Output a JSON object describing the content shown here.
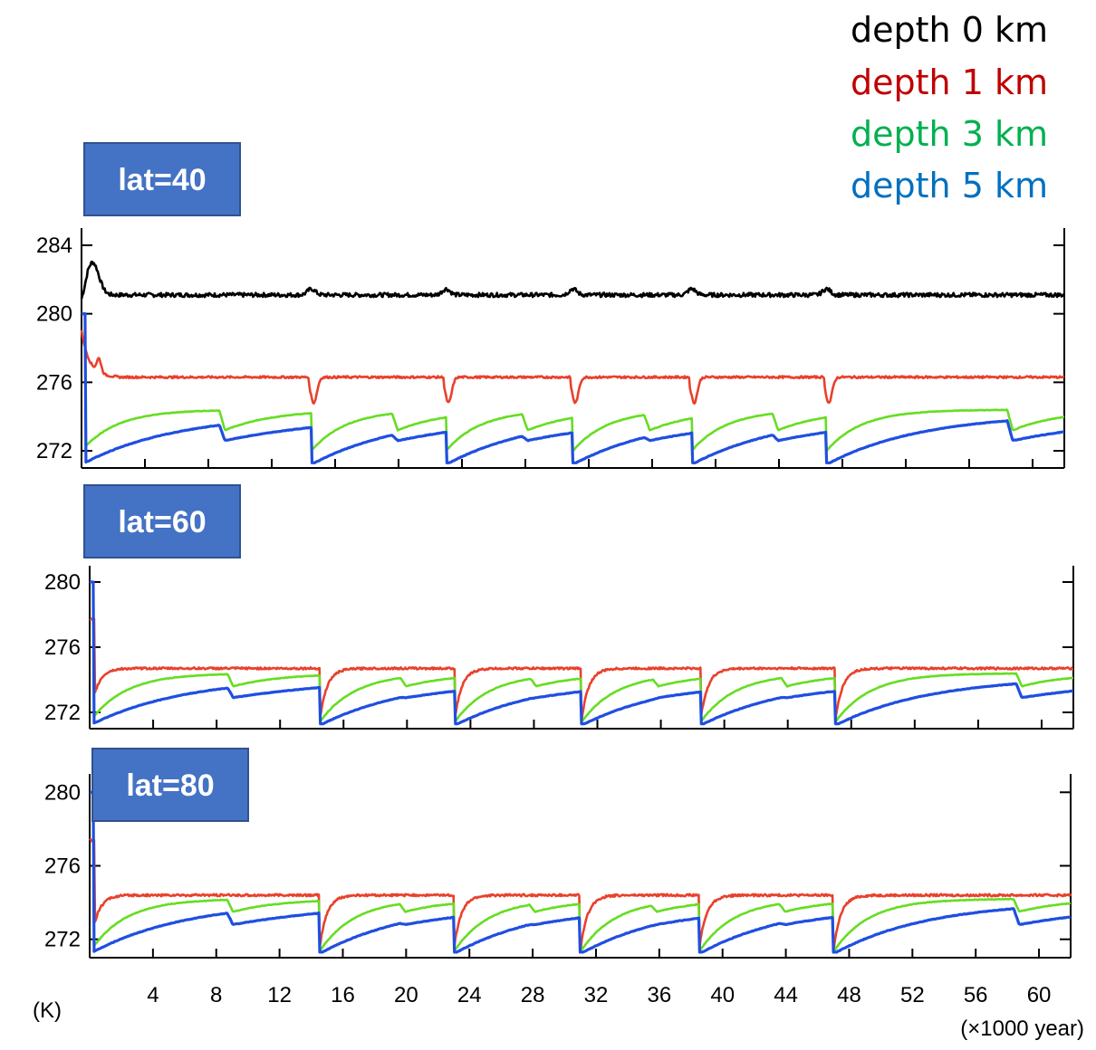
{
  "legend": [
    {
      "label": "depth 0 km",
      "color": "#000000"
    },
    {
      "label": "depth 1 km",
      "color": "#c00000"
    },
    {
      "label": "depth 3 km",
      "color": "#00b050"
    },
    {
      "label": "depth 5 km",
      "color": "#0070c0"
    }
  ],
  "series_colors": {
    "depth 0 km": "#000000",
    "depth 1 km": "#e8412c",
    "depth 3 km": "#66dd22",
    "depth 5 km": "#1f4fe0"
  },
  "x_axis": {
    "unit_label": "(×1000 year)",
    "ticks": [
      4,
      8,
      12,
      16,
      20,
      24,
      28,
      32,
      36,
      40,
      44,
      48,
      52,
      56,
      60
    ],
    "range": [
      0,
      62
    ]
  },
  "y_axis": {
    "unit_label": "(K)"
  },
  "chart_data": [
    {
      "type": "line",
      "panel_label": "lat=40",
      "xlim": [
        0,
        62
      ],
      "ylim": [
        271,
        285
      ],
      "yticks": [
        272,
        276,
        280,
        284
      ],
      "reset_times": [
        0,
        14.5,
        23,
        31,
        38.5,
        47
      ],
      "series": [
        {
          "name": "depth 0 km",
          "level": 281.1,
          "start": 280.5,
          "spike_peak": 283.0
        },
        {
          "name": "depth 1 km",
          "level": 276.3,
          "start": 279.0,
          "dip_min": 274.8
        },
        {
          "name": "depth 3 km",
          "low": 272.0,
          "high": 274.4,
          "drop_to": 273.2
        },
        {
          "name": "depth 5 km",
          "low": 271.2,
          "high": 274.2,
          "drop_to": 272.6
        }
      ]
    },
    {
      "type": "line",
      "panel_label": "lat=60",
      "xlim": [
        0,
        62
      ],
      "ylim": [
        271,
        281
      ],
      "yticks": [
        272,
        276,
        280
      ],
      "reset_times": [
        0,
        14.5,
        23,
        31,
        38.5,
        47
      ],
      "series": [
        {
          "name": "depth 1 km",
          "low": 271.5,
          "high": 274.7
        },
        {
          "name": "depth 3 km",
          "low": 271.4,
          "high": 274.4,
          "drop_to": 273.6
        },
        {
          "name": "depth 5 km",
          "low": 271.2,
          "high": 274.2,
          "drop_to": 272.9
        }
      ]
    },
    {
      "type": "line",
      "panel_label": "lat=80",
      "xlim": [
        0,
        62
      ],
      "ylim": [
        271,
        281
      ],
      "yticks": [
        272,
        276,
        280
      ],
      "reset_times": [
        0,
        14.5,
        23,
        31,
        38.5,
        47
      ],
      "series": [
        {
          "name": "depth 1 km",
          "low": 271.3,
          "high": 274.4
        },
        {
          "name": "depth 3 km",
          "low": 271.3,
          "high": 274.2,
          "drop_to": 273.5
        },
        {
          "name": "depth 5 km",
          "low": 271.2,
          "high": 274.1,
          "drop_to": 272.8
        }
      ]
    }
  ]
}
